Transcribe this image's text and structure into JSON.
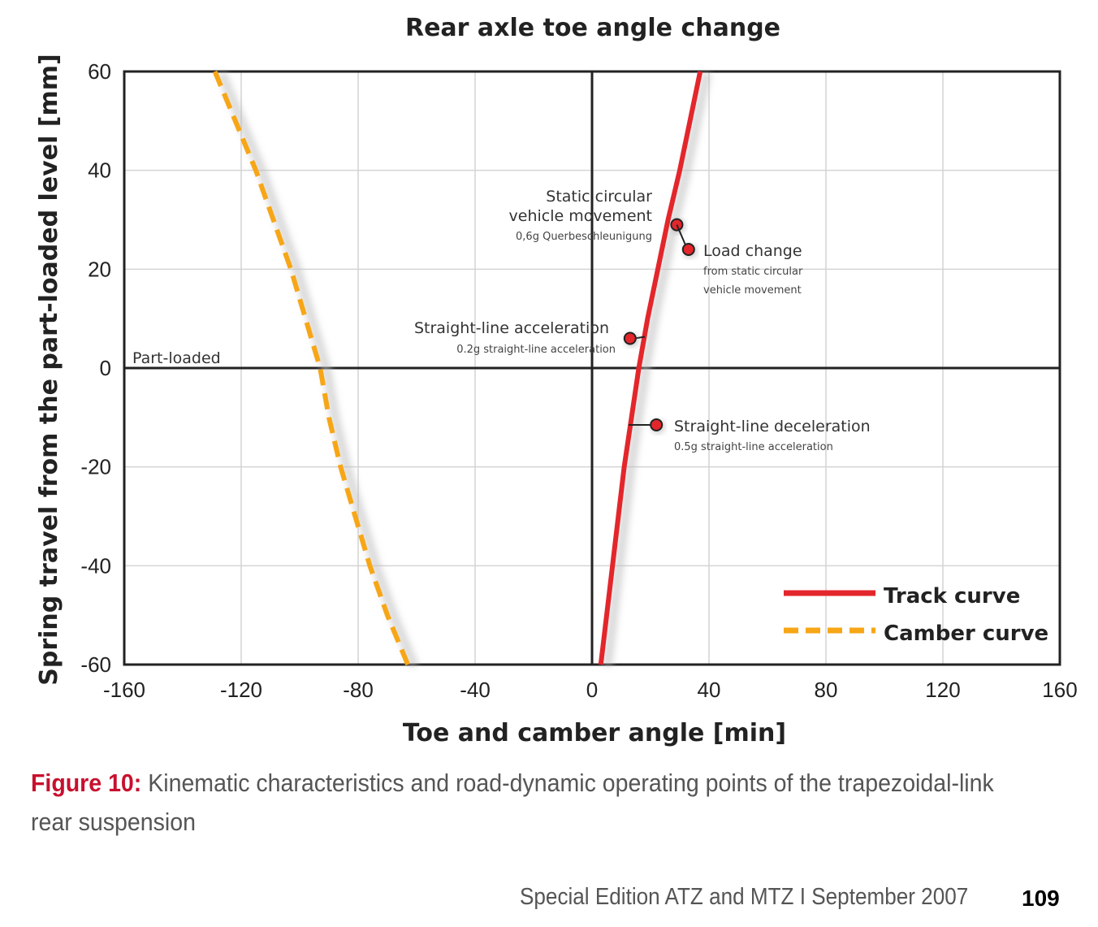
{
  "chart_data": {
    "type": "line",
    "title": "Rear axle toe angle change",
    "xlabel": "Toe and camber angle [min]",
    "ylabel": "Spring travel from the part-loaded level [mm]",
    "xlim": [
      -160,
      160
    ],
    "ylim": [
      -60,
      60
    ],
    "x_ticks": [
      -160,
      -120,
      -80,
      -40,
      0,
      40,
      80,
      120,
      160
    ],
    "y_ticks": [
      -60,
      -40,
      -20,
      0,
      20,
      40,
      60
    ],
    "grid": true,
    "legend_position": "bottom-right",
    "series": [
      {
        "name": "Track curve",
        "style": "solid",
        "color": "#e3262b",
        "points": [
          [
            3,
            -60
          ],
          [
            5,
            -50
          ],
          [
            7,
            -40
          ],
          [
            9,
            -30
          ],
          [
            11,
            -20
          ],
          [
            13.5,
            -10
          ],
          [
            16,
            0
          ],
          [
            19,
            10
          ],
          [
            22.5,
            20
          ],
          [
            26,
            30
          ],
          [
            30,
            40
          ],
          [
            33.5,
            50
          ],
          [
            37,
            60
          ]
        ]
      },
      {
        "name": "Camber curve",
        "style": "dashed",
        "color": "#f7a616",
        "points": [
          [
            -63,
            -60
          ],
          [
            -70,
            -50
          ],
          [
            -76,
            -40
          ],
          [
            -81,
            -30
          ],
          [
            -86,
            -20
          ],
          [
            -90,
            -10
          ],
          [
            -93,
            0
          ],
          [
            -98,
            10
          ],
          [
            -103,
            20
          ],
          [
            -109,
            30
          ],
          [
            -115,
            40
          ],
          [
            -122,
            50
          ],
          [
            -129,
            60
          ]
        ]
      }
    ],
    "operating_points": [
      {
        "x": 29,
        "y": 29,
        "label": "Static circular vehicle movement",
        "sublabel": "0,6g Querbeschleunigung"
      },
      {
        "x": 33,
        "y": 24,
        "label": "Load change",
        "sublabel_lines": [
          "from static circular",
          "vehicle movement"
        ]
      },
      {
        "x": 13,
        "y": 6,
        "label": "Straight-line acceleration",
        "sublabel": "0.2g straight-line acceleration"
      },
      {
        "x": 22,
        "y": -11.5,
        "label": "Straight-line deceleration",
        "sublabel": "0.5g straight-line acceleration"
      }
    ],
    "reference_line_label": "Part-loaded"
  },
  "caption": {
    "figure_label": "Figure 10:",
    "text": " Kinematic characteristics and road-dynamic operating points of the trapezoidal-link rear suspension"
  },
  "footer": {
    "text": "Special Edition ATZ and MTZ I September 2007",
    "page": "109"
  }
}
